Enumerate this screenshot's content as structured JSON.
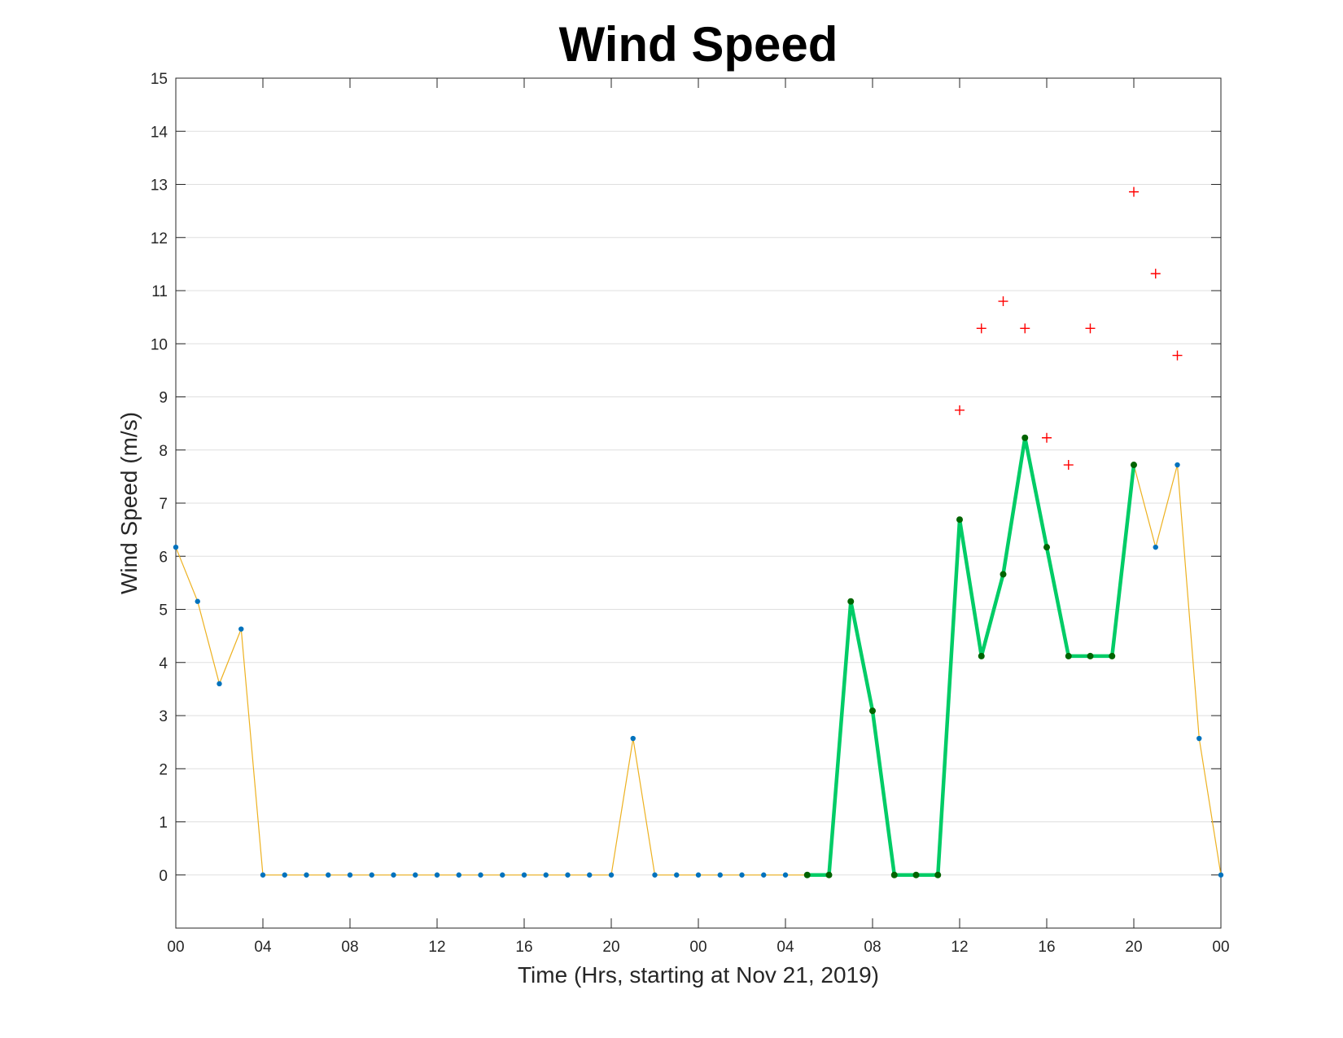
{
  "chart_data": {
    "type": "line",
    "title": "Wind Speed",
    "xlabel": "Time (Hrs, starting at Nov 21, 2019)",
    "ylabel": "Wind Speed (m/s)",
    "xlim": [
      0,
      48
    ],
    "ylim": [
      -1,
      15
    ],
    "grid": "horizontal",
    "x_ticks": [
      {
        "x": 0,
        "label": "00"
      },
      {
        "x": 4,
        "label": "04"
      },
      {
        "x": 8,
        "label": "08"
      },
      {
        "x": 12,
        "label": "12"
      },
      {
        "x": 16,
        "label": "16"
      },
      {
        "x": 20,
        "label": "20"
      },
      {
        "x": 24,
        "label": "00"
      },
      {
        "x": 28,
        "label": "04"
      },
      {
        "x": 32,
        "label": "08"
      },
      {
        "x": 36,
        "label": "12"
      },
      {
        "x": 40,
        "label": "16"
      },
      {
        "x": 44,
        "label": "20"
      },
      {
        "x": 48,
        "label": "00"
      }
    ],
    "y_ticks": [
      0,
      1,
      2,
      3,
      4,
      5,
      6,
      7,
      8,
      9,
      10,
      11,
      12,
      13,
      14,
      15
    ],
    "series": [
      {
        "style": "thin-line-with-dots",
        "color": "#EDB120",
        "marker_color": "#0072BD",
        "x": [
          0,
          1,
          2,
          3,
          4,
          5,
          6,
          7,
          8,
          9,
          10,
          11,
          12,
          13,
          14,
          15,
          16,
          17,
          18,
          19,
          20,
          21,
          22,
          23,
          24,
          25,
          26,
          27,
          28,
          29,
          30,
          31,
          32,
          33,
          34,
          35,
          36,
          37,
          38,
          39,
          40,
          41,
          42,
          43,
          44,
          45,
          46,
          47,
          48
        ],
        "y": [
          6.17,
          5.15,
          3.6,
          4.63,
          0,
          0,
          0,
          0,
          0,
          0,
          0,
          0,
          0,
          0,
          0,
          0,
          0,
          0,
          0,
          0,
          0,
          2.57,
          0,
          0,
          0,
          0,
          0,
          0,
          0,
          0,
          0,
          5.15,
          3.09,
          0,
          0,
          0,
          6.69,
          4.12,
          5.66,
          8.23,
          6.17,
          4.12,
          4.12,
          4.12,
          7.72,
          6.17,
          7.72,
          2.57,
          0
        ]
      },
      {
        "style": "thick-line-with-dots",
        "color": "#00CC66",
        "marker_color": "#006400",
        "x": [
          29,
          30,
          31,
          32,
          33,
          34,
          35,
          36,
          37,
          38,
          39,
          40,
          41,
          42,
          43,
          44
        ],
        "y": [
          0,
          0,
          5.15,
          3.09,
          0,
          0,
          0,
          6.69,
          4.12,
          5.66,
          8.23,
          6.17,
          4.12,
          4.12,
          4.12,
          7.72
        ]
      },
      {
        "style": "plus-markers",
        "color": "#FF0000",
        "x": [
          36,
          37,
          38,
          39,
          40,
          41,
          42,
          44,
          45,
          46
        ],
        "y": [
          8.75,
          10.29,
          10.8,
          10.29,
          8.23,
          7.72,
          10.29,
          12.86,
          11.32,
          9.78
        ]
      }
    ]
  }
}
